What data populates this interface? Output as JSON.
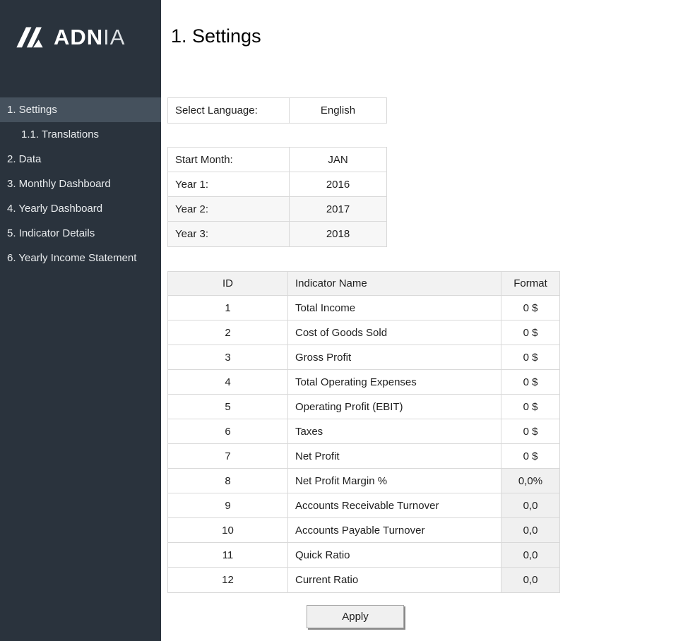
{
  "app": {
    "title": "1. Settings"
  },
  "sidebar": {
    "logo": {
      "brand_bold": "ADN",
      "brand_light": "IA"
    },
    "items": [
      {
        "label": "1. Settings",
        "active": true,
        "sub": false
      },
      {
        "label": "1.1. Translations",
        "active": false,
        "sub": true
      },
      {
        "label": "2. Data",
        "active": false,
        "sub": false
      },
      {
        "label": "3. Monthly Dashboard",
        "active": false,
        "sub": false
      },
      {
        "label": "4. Yearly Dashboard",
        "active": false,
        "sub": false
      },
      {
        "label": "5. Indicator Details",
        "active": false,
        "sub": false
      },
      {
        "label": "6. Yearly Income Statement",
        "active": false,
        "sub": false
      }
    ]
  },
  "language": {
    "label": "Select Language:",
    "value": "English"
  },
  "period": {
    "rows": [
      {
        "label": "Start Month:",
        "value": "JAN",
        "shaded": false
      },
      {
        "label": "Year 1:",
        "value": "2016",
        "shaded": false
      },
      {
        "label": "Year 2:",
        "value": "2017",
        "shaded": true
      },
      {
        "label": "Year 3:",
        "value": "2018",
        "shaded": true
      }
    ]
  },
  "indicators": {
    "headers": {
      "id": "ID",
      "name": "Indicator Name",
      "format": "Format"
    },
    "rows": [
      {
        "id": "1",
        "name": "Total Income",
        "format": "0 $",
        "shaded": false
      },
      {
        "id": "2",
        "name": "Cost of Goods Sold",
        "format": "0 $",
        "shaded": false
      },
      {
        "id": "3",
        "name": "Gross Profit",
        "format": "0 $",
        "shaded": false
      },
      {
        "id": "4",
        "name": "Total Operating Expenses",
        "format": "0 $",
        "shaded": false
      },
      {
        "id": "5",
        "name": "Operating Profit (EBIT)",
        "format": "0 $",
        "shaded": false
      },
      {
        "id": "6",
        "name": "Taxes",
        "format": "0 $",
        "shaded": false
      },
      {
        "id": "7",
        "name": "Net Profit",
        "format": "0 $",
        "shaded": false
      },
      {
        "id": "8",
        "name": "Net Profit Margin %",
        "format": "0,0%",
        "shaded": true
      },
      {
        "id": "9",
        "name": "Accounts Receivable Turnover",
        "format": "0,0",
        "shaded": true
      },
      {
        "id": "10",
        "name": "Accounts Payable Turnover",
        "format": "0,0",
        "shaded": true
      },
      {
        "id": "11",
        "name": "Quick Ratio",
        "format": "0,0",
        "shaded": true
      },
      {
        "id": "12",
        "name": "Current Ratio",
        "format": "0,0",
        "shaded": true
      }
    ]
  },
  "actions": {
    "apply_label": "Apply"
  },
  "colors": {
    "sidebar_bg": "#2a333d",
    "sidebar_active_bg": "#45515d",
    "sidebar_text": "#e9ecee",
    "table_border": "#d9d9d9",
    "header_cell_bg": "#f2f2f2",
    "shaded_format_cell_bg": "#f0f0f0",
    "soft_row_bg": "#f7f7f7",
    "button_bg": "#f0f0f0"
  }
}
